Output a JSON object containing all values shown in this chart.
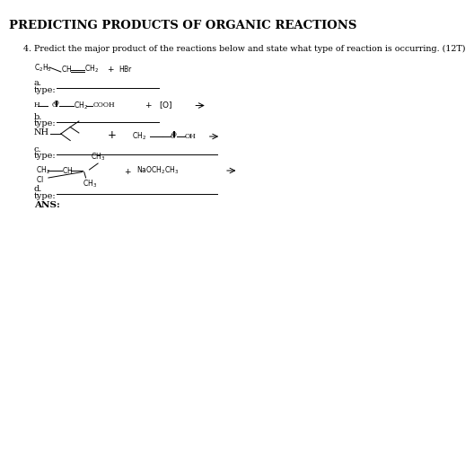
{
  "title": "PREDICTING PRODUCTS OF ORGANIC REACTIONS",
  "question": "4. Predict the major product of the reactions below and state what type of reaction is occurring. (12T)",
  "background_color": "#ffffff",
  "text_color": "#000000",
  "title_fontsize": 9.5,
  "question_fontsize": 6.8,
  "label_fontsize": 7.0,
  "small_fontsize": 5.5
}
